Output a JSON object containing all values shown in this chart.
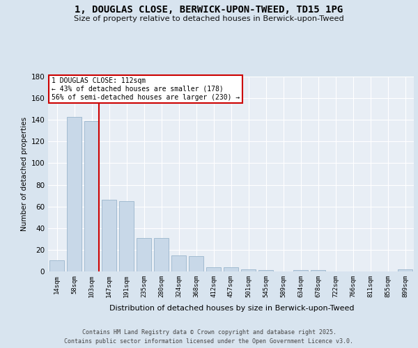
{
  "title": "1, DOUGLAS CLOSE, BERWICK-UPON-TWEED, TD15 1PG",
  "subtitle": "Size of property relative to detached houses in Berwick-upon-Tweed",
  "xlabel": "Distribution of detached houses by size in Berwick-upon-Tweed",
  "ylabel": "Number of detached properties",
  "categories": [
    "14sqm",
    "58sqm",
    "103sqm",
    "147sqm",
    "191sqm",
    "235sqm",
    "280sqm",
    "324sqm",
    "368sqm",
    "412sqm",
    "457sqm",
    "501sqm",
    "545sqm",
    "589sqm",
    "634sqm",
    "678sqm",
    "722sqm",
    "766sqm",
    "811sqm",
    "855sqm",
    "899sqm"
  ],
  "values": [
    10,
    143,
    139,
    66,
    65,
    31,
    31,
    15,
    14,
    4,
    4,
    2,
    1,
    0,
    1,
    1,
    0,
    0,
    0,
    0,
    2
  ],
  "bar_color": "#c8d8e8",
  "bar_edge_color": "#9ab5cc",
  "red_line_x": 2.42,
  "annotation_line1": "1 DOUGLAS CLOSE: 112sqm",
  "annotation_line2": "← 43% of detached houses are smaller (178)",
  "annotation_line3": "56% of semi-detached houses are larger (230) →",
  "annotation_box_color": "#ffffff",
  "annotation_box_edge": "#cc0000",
  "red_line_color": "#cc0000",
  "fig_bg_color": "#d8e4ef",
  "plot_bg_color": "#e8eef5",
  "grid_color": "#ffffff",
  "footer_line1": "Contains HM Land Registry data © Crown copyright and database right 2025.",
  "footer_line2": "Contains public sector information licensed under the Open Government Licence v3.0.",
  "ylim": [
    0,
    180
  ],
  "yticks": [
    0,
    20,
    40,
    60,
    80,
    100,
    120,
    140,
    160,
    180
  ]
}
